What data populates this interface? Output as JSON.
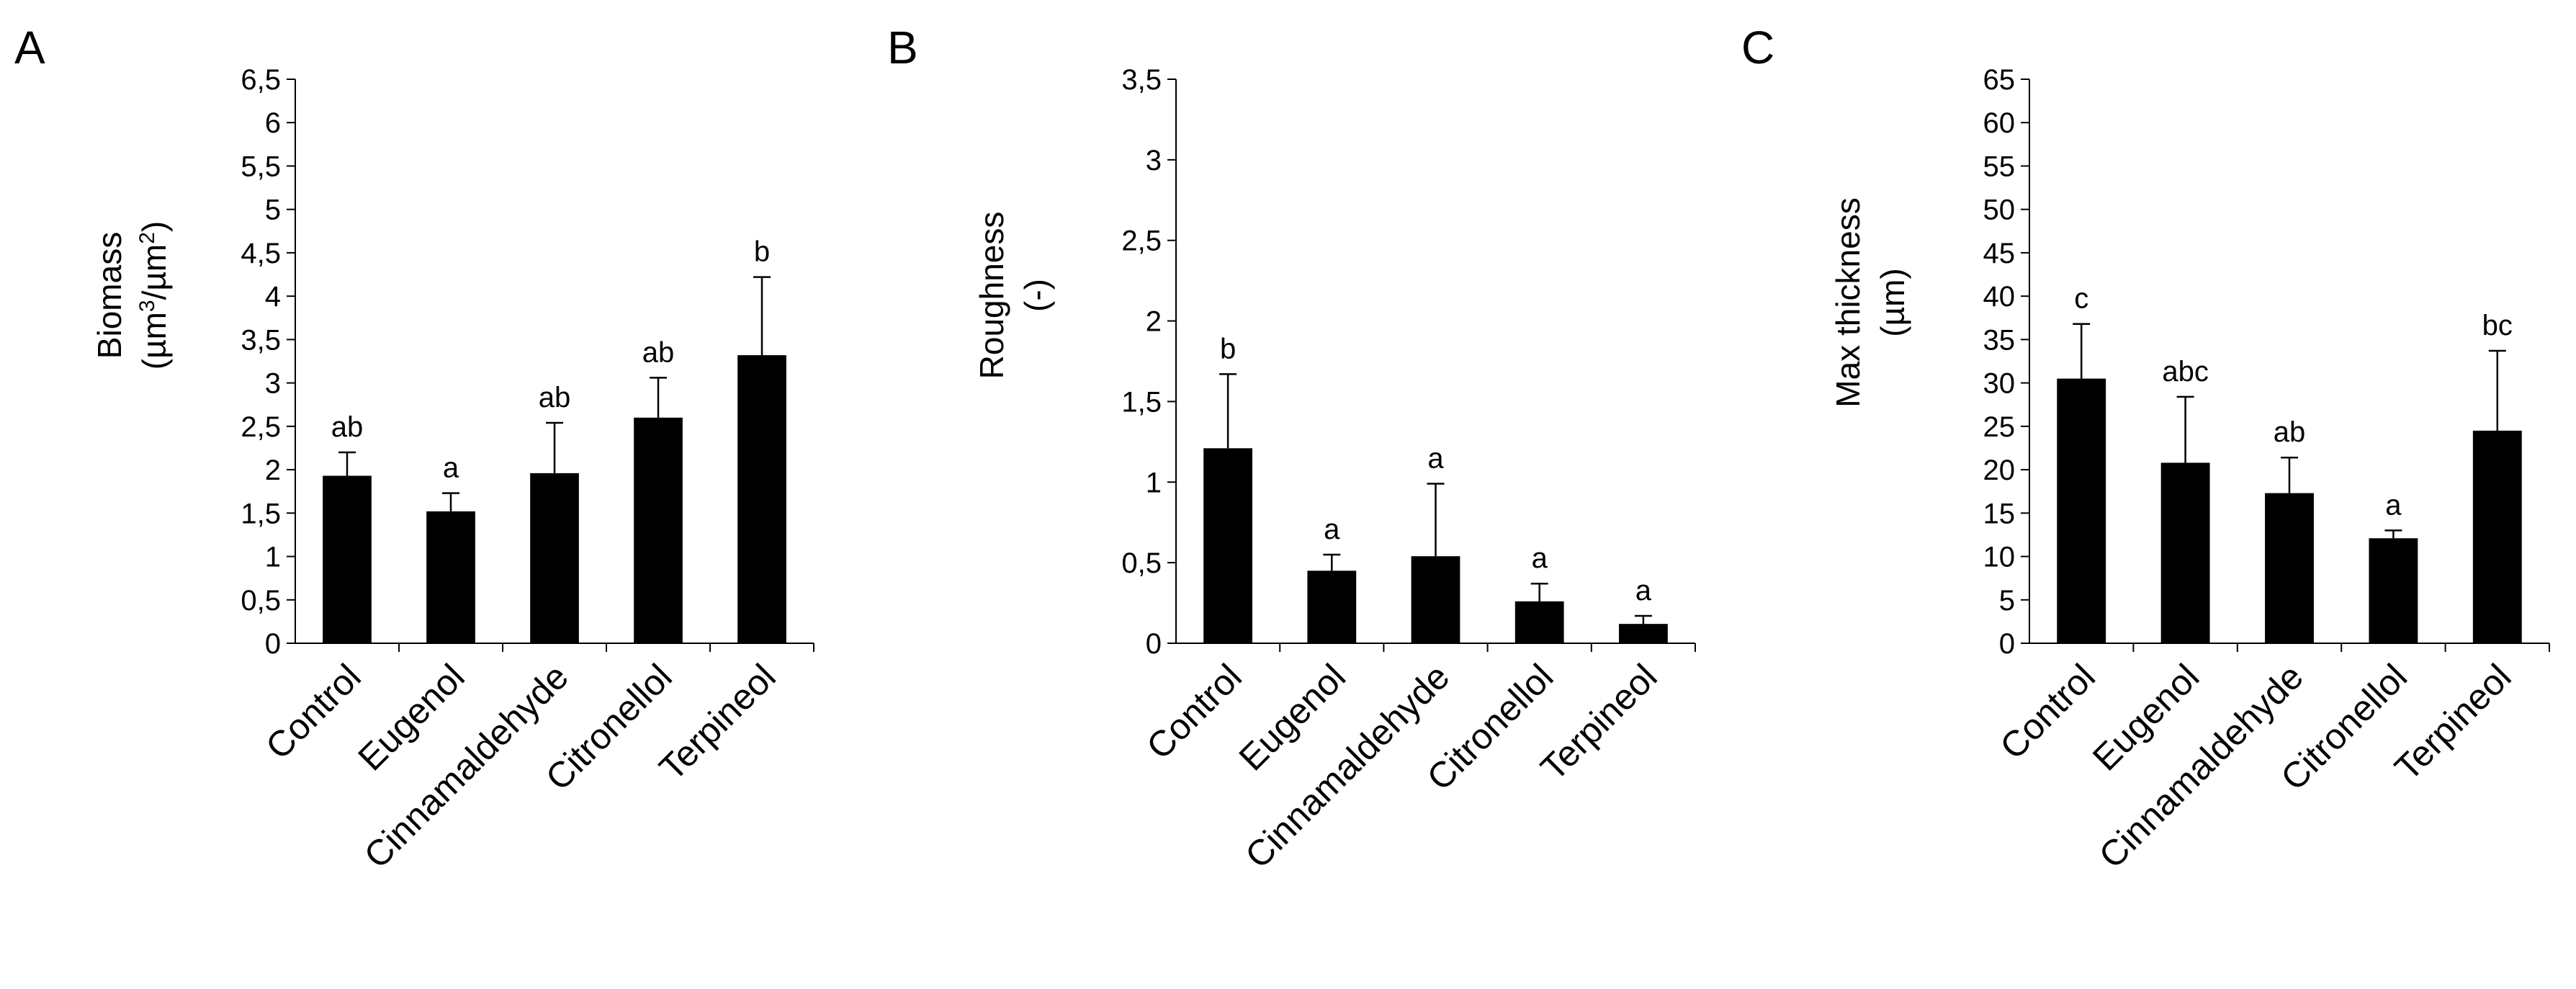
{
  "chart_data": [
    {
      "type": "bar",
      "panel": "A",
      "ylabel_lines": [
        "Biomass",
        "(µm",
        "3",
        "/µm",
        "2",
        ")"
      ],
      "categories": [
        "Control",
        "Eugenol",
        "Cinnamaldehyde",
        "Citronellol",
        "Terpineol"
      ],
      "values": [
        1.93,
        1.52,
        1.96,
        2.6,
        3.32
      ],
      "errors": [
        0.27,
        0.21,
        0.58,
        0.46,
        0.9
      ],
      "significance": [
        "ab",
        "a",
        "ab",
        "ab",
        "b"
      ],
      "ylim": [
        0,
        6.5
      ],
      "yticks": [
        0,
        0.5,
        1,
        1.5,
        2,
        2.5,
        3,
        3.5,
        4,
        4.5,
        5,
        5.5,
        6,
        6.5
      ],
      "ytick_labels": [
        "0",
        "0,5",
        "1",
        "1,5",
        "2",
        "2,5",
        "3",
        "3,5",
        "4",
        "4,5",
        "5",
        "5,5",
        "6",
        "6,5"
      ]
    },
    {
      "type": "bar",
      "panel": "B",
      "ylabel_lines": [
        "Roughness",
        "(-)"
      ],
      "categories": [
        "Control",
        "Eugenol",
        "Cinnamaldehyde",
        "Citronellol",
        "Terpineol"
      ],
      "values": [
        1.21,
        0.45,
        0.54,
        0.26,
        0.12
      ],
      "errors": [
        0.46,
        0.1,
        0.45,
        0.11,
        0.05
      ],
      "significance": [
        "b",
        "a",
        "a",
        "a",
        "a"
      ],
      "ylim": [
        0,
        3.5
      ],
      "yticks": [
        0,
        0.5,
        1,
        1.5,
        2,
        2.5,
        3,
        3.5
      ],
      "ytick_labels": [
        "0",
        "0,5",
        "1",
        "1,5",
        "2",
        "2,5",
        "3",
        "3,5"
      ]
    },
    {
      "type": "bar",
      "panel": "C",
      "ylabel_lines": [
        "Max thickness",
        "(µm)"
      ],
      "categories": [
        "Control",
        "Eugenol",
        "Cinnamaldehyde",
        "Citronellol",
        "Terpineol"
      ],
      "values": [
        30.5,
        20.8,
        17.3,
        12.1,
        24.5
      ],
      "errors": [
        6.3,
        7.6,
        4.1,
        0.9,
        9.2
      ],
      "significance": [
        "c",
        "abc",
        "ab",
        "a",
        "bc"
      ],
      "ylim": [
        0,
        65
      ],
      "yticks": [
        0,
        5,
        10,
        15,
        20,
        25,
        30,
        35,
        40,
        45,
        50,
        55,
        60,
        65
      ],
      "ytick_labels": [
        "0",
        "5",
        "10",
        "15",
        "20",
        "25",
        "30",
        "35",
        "40",
        "45",
        "50",
        "55",
        "60",
        "65"
      ]
    }
  ]
}
